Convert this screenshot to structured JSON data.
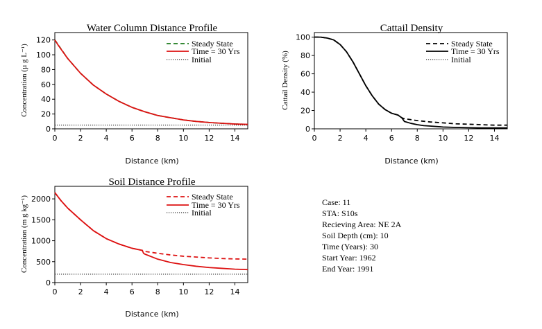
{
  "chart_data": [
    {
      "type": "line",
      "title": "Water Column Distance Profile",
      "xlabel": "Distance (km)",
      "ylabel": "Concentration (µ g L⁻¹)",
      "xlim": [
        0,
        15
      ],
      "ylim": [
        0,
        130
      ],
      "xticks": [
        0,
        2,
        4,
        6,
        8,
        10,
        12,
        14
      ],
      "yticks": [
        0,
        20,
        40,
        60,
        80,
        100,
        120
      ],
      "grid": false,
      "legend_position": "top-right",
      "series": [
        {
          "name": "Steady State",
          "style": "dashed",
          "color": "#1a7a1a",
          "x": [
            0,
            1,
            2,
            3,
            4,
            5,
            6,
            7,
            8,
            9,
            10,
            11,
            12,
            13,
            14,
            15
          ],
          "y": [
            120,
            95,
            75,
            59,
            47,
            37,
            29,
            23,
            18,
            15,
            12,
            10,
            8.5,
            7.5,
            6.5,
            6
          ]
        },
        {
          "name": "Time = 30 Yrs",
          "style": "solid",
          "color": "#dd1111",
          "x": [
            0,
            0.3,
            1,
            2,
            3,
            4,
            5,
            6,
            7,
            8,
            9,
            10,
            11,
            12,
            13,
            14,
            15
          ],
          "y": [
            120,
            112,
            95,
            75,
            59,
            47,
            37,
            29,
            23,
            18,
            15,
            12,
            10,
            8.5,
            7.5,
            6.5,
            6
          ]
        },
        {
          "name": "Initial",
          "style": "dotted",
          "color": "#000000",
          "x": [
            0,
            15
          ],
          "y": [
            5,
            5
          ]
        }
      ]
    },
    {
      "type": "line",
      "title": "Cattail Density",
      "xlabel": "Distance (km)",
      "ylabel": "Cattail Density (%)",
      "xlim": [
        0,
        15
      ],
      "ylim": [
        0,
        105
      ],
      "xticks": [
        0,
        2,
        4,
        6,
        8,
        10,
        12,
        14
      ],
      "yticks": [
        0,
        20,
        40,
        60,
        80,
        100
      ],
      "grid": false,
      "legend_position": "top-right",
      "series": [
        {
          "name": "Steady State",
          "style": "dashed",
          "color": "#000000",
          "x": [
            0,
            0.5,
            1,
            1.5,
            2,
            2.5,
            3,
            3.5,
            4,
            4.5,
            5,
            5.5,
            6,
            6.5,
            6.8,
            7,
            8,
            9,
            10,
            11,
            12,
            13,
            14,
            15
          ],
          "y": [
            100,
            100,
            99,
            97,
            92,
            84,
            73,
            60,
            47,
            36,
            27,
            21,
            17,
            15,
            12,
            11,
            9,
            7.5,
            6.5,
            5.5,
            5,
            4.5,
            4,
            4
          ]
        },
        {
          "name": "Time = 30 Yrs",
          "style": "solid",
          "color": "#000000",
          "x": [
            0,
            0.5,
            1,
            1.5,
            2,
            2.5,
            3,
            3.5,
            4,
            4.5,
            5,
            5.5,
            6,
            6.5,
            6.8,
            7,
            7.5,
            8,
            8.5,
            9,
            10,
            11,
            12,
            13,
            14,
            15
          ],
          "y": [
            100,
            100,
            99,
            97,
            92,
            84,
            73,
            60,
            47,
            36,
            27,
            21,
            17,
            15,
            12,
            8,
            6,
            4.5,
            3.5,
            3,
            2,
            1.5,
            1.2,
            1,
            1,
            1
          ]
        },
        {
          "name": "Initial",
          "style": "dotted",
          "color": "#000000",
          "x": [
            0,
            15
          ],
          "y": [
            0,
            0
          ]
        }
      ]
    },
    {
      "type": "line",
      "title": "Soil Distance Profile",
      "xlabel": "Distance (km)",
      "ylabel": "Concentration (m g kg⁻¹)",
      "xlim": [
        0,
        15
      ],
      "ylim": [
        0,
        2300
      ],
      "xticks": [
        0,
        2,
        4,
        6,
        8,
        10,
        12,
        14
      ],
      "yticks": [
        0,
        500,
        1000,
        1500,
        2000
      ],
      "grid": false,
      "legend_position": "top-right",
      "series": [
        {
          "name": "Steady State",
          "style": "dashed",
          "color": "#dd1111",
          "x": [
            0,
            0.5,
            1,
            2,
            3,
            4,
            5,
            6,
            6.8,
            7,
            8,
            9,
            10,
            11,
            12,
            13,
            14,
            15
          ],
          "y": [
            2150,
            1950,
            1780,
            1500,
            1240,
            1050,
            920,
            820,
            770,
            745,
            700,
            660,
            630,
            610,
            590,
            575,
            565,
            560
          ]
        },
        {
          "name": "Time = 30 Yrs",
          "style": "solid",
          "color": "#dd1111",
          "x": [
            0,
            0.5,
            1,
            2,
            3,
            4,
            5,
            6,
            6.8,
            6.9,
            7,
            8,
            9,
            10,
            11,
            12,
            13,
            14,
            15
          ],
          "y": [
            2150,
            1950,
            1780,
            1500,
            1240,
            1050,
            920,
            820,
            770,
            700,
            680,
            560,
            480,
            430,
            390,
            360,
            340,
            320,
            310
          ]
        },
        {
          "name": "Initial",
          "style": "dotted",
          "color": "#000000",
          "x": [
            0,
            15
          ],
          "y": [
            200,
            200
          ]
        }
      ]
    }
  ],
  "info_panel": {
    "case": "Case: 11",
    "sta": "STA: S10s",
    "receiving_area": "Recieving Area: NE 2A",
    "soil_depth": "Soil Depth (cm): 10",
    "time_years": "Time (Years): 30",
    "start_year": "Start Year: 1962",
    "end_year": "End Year: 1991"
  }
}
